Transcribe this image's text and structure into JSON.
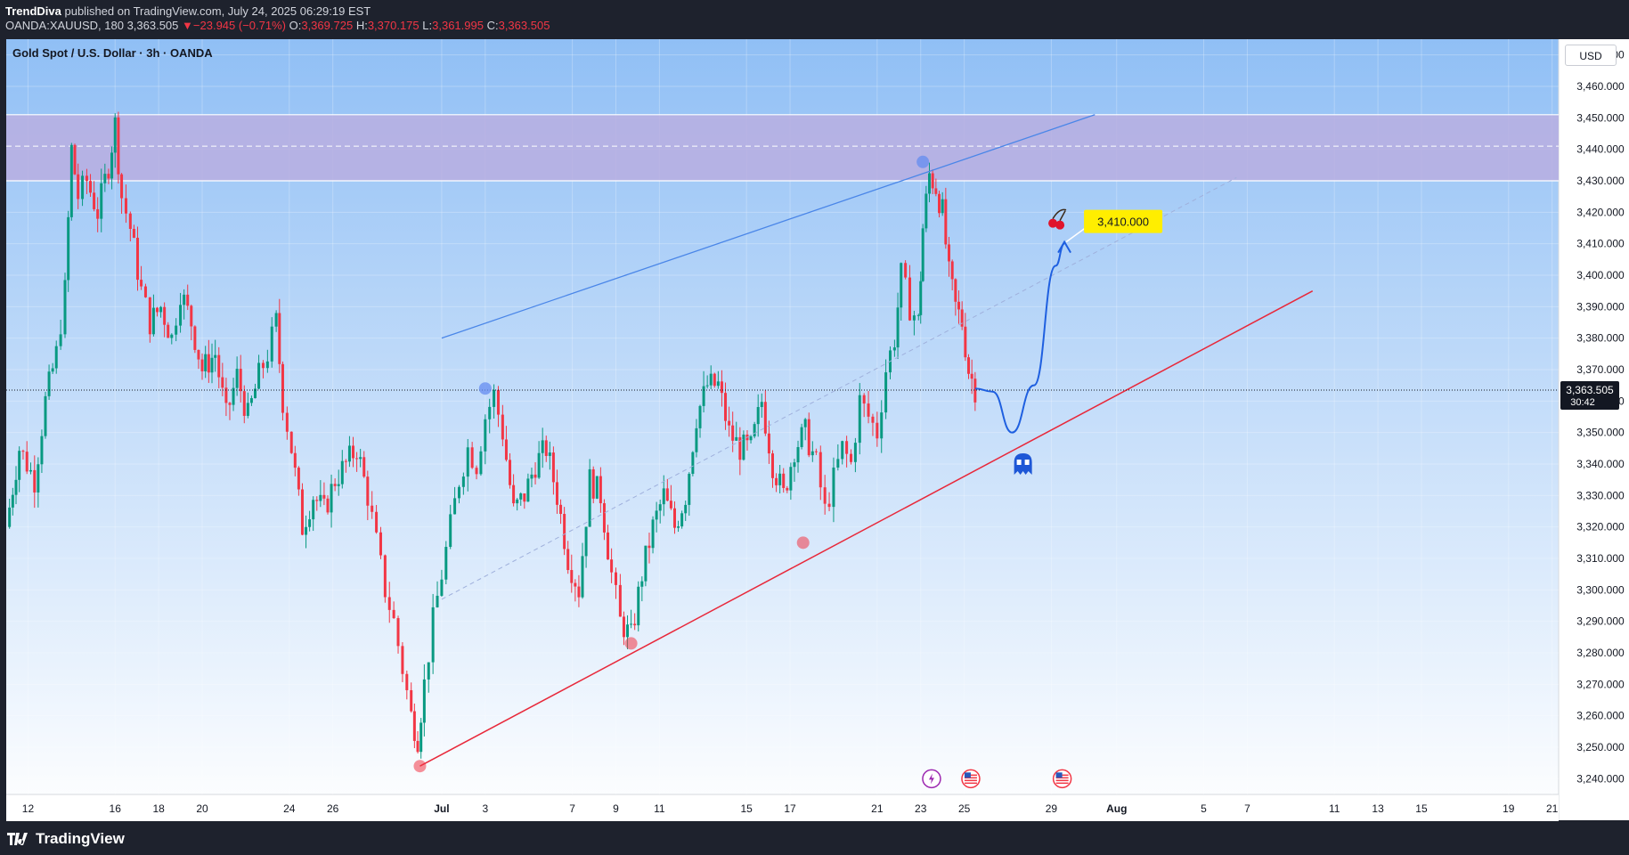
{
  "header": {
    "author": "TrendDiva",
    "published_text": "published on TradingView.com, July 24, 2025 06:29:19 EST",
    "symbol": "OANDA:XAUUSD, 180",
    "last": "3,363.505",
    "change_arrow": "▼",
    "change": "−23.945 (−0.71%)",
    "open_label": "O:",
    "open": "3,369.725",
    "high_label": "H:",
    "high": "3,370.175",
    "low_label": "L:",
    "low": "3,361.995",
    "close_label": "C:",
    "close": "3,363.505"
  },
  "chart_title": "Gold Spot / U.S. Dollar · 3h · OANDA",
  "currency_button": "USD",
  "footer": {
    "brand": "TradingView"
  },
  "colors": {
    "up": "#089981",
    "down": "#f23645",
    "bg_top": "#90bff5",
    "bg_bottom": "#ffffff",
    "zone": "#b9aee0",
    "upper_line": "#4a86e8",
    "lower_line": "#e8283a",
    "target": "#ffee00"
  },
  "chart_data": {
    "type": "candlestick",
    "ylim": [
      3235,
      3475
    ],
    "y_ticks": [
      "3,240.000",
      "3,250.000",
      "3,260.000",
      "3,270.000",
      "3,280.000",
      "3,290.000",
      "3,300.000",
      "3,310.000",
      "3,320.000",
      "3,330.000",
      "3,340.000",
      "3,350.000",
      "3,360.000",
      "3,370.000",
      "3,380.000",
      "3,390.000",
      "3,400.000",
      "3,410.000",
      "3,420.000",
      "3,430.000",
      "3,440.000",
      "3,450.000",
      "3,460.000",
      "3,470.000"
    ],
    "y_tick_values": [
      3240,
      3250,
      3260,
      3270,
      3280,
      3290,
      3300,
      3310,
      3320,
      3330,
      3340,
      3350,
      3360,
      3370,
      3380,
      3390,
      3400,
      3410,
      3420,
      3430,
      3440,
      3450,
      3460,
      3470
    ],
    "x_ticks": [
      "12",
      "16",
      "18",
      "20",
      "24",
      "26",
      "Jul",
      "3",
      "7",
      "9",
      "11",
      "15",
      "17",
      "21",
      "23",
      "25",
      "29",
      "Aug",
      "5",
      "7",
      "11",
      "13",
      "15",
      "19",
      "21"
    ],
    "x_tick_days": [
      12,
      16,
      18,
      20,
      24,
      26,
      31,
      33,
      37,
      39,
      41,
      45,
      47,
      51,
      53,
      55,
      59,
      62,
      66,
      68,
      72,
      74,
      76,
      80,
      82
    ],
    "x_domain_days": [
      11,
      82.3
    ],
    "current_price": "3,363.505",
    "current_price_value": 3363.5,
    "countdown": "30:42",
    "resistance_zone": [
      3430,
      3451
    ],
    "resistance_mid": 3441,
    "candles_close_anchors": [
      [
        11.0,
        3320
      ],
      [
        11.6,
        3345
      ],
      [
        12.3,
        3335
      ],
      [
        12.8,
        3360
      ],
      [
        13.3,
        3375
      ],
      [
        13.7,
        3395
      ],
      [
        14.0,
        3440
      ],
      [
        14.3,
        3425
      ],
      [
        14.7,
        3430
      ],
      [
        15.2,
        3420
      ],
      [
        15.7,
        3435
      ],
      [
        16.0,
        3448
      ],
      [
        16.3,
        3425
      ],
      [
        16.7,
        3415
      ],
      [
        17.2,
        3395
      ],
      [
        17.6,
        3385
      ],
      [
        18.1,
        3390
      ],
      [
        18.6,
        3380
      ],
      [
        19.0,
        3395
      ],
      [
        19.5,
        3385
      ],
      [
        20.0,
        3370
      ],
      [
        20.6,
        3375
      ],
      [
        21.1,
        3355
      ],
      [
        21.6,
        3368
      ],
      [
        22.1,
        3355
      ],
      [
        22.6,
        3368
      ],
      [
        23.0,
        3375
      ],
      [
        23.4,
        3385
      ],
      [
        23.7,
        3360
      ],
      [
        24.1,
        3345
      ],
      [
        24.6,
        3320
      ],
      [
        25.1,
        3330
      ],
      [
        25.6,
        3325
      ],
      [
        26.1,
        3335
      ],
      [
        26.6,
        3340
      ],
      [
        27.1,
        3345
      ],
      [
        27.6,
        3330
      ],
      [
        28.0,
        3315
      ],
      [
        28.4,
        3300
      ],
      [
        28.8,
        3290
      ],
      [
        29.2,
        3275
      ],
      [
        29.6,
        3260
      ],
      [
        29.9,
        3253
      ],
      [
        30.2,
        3270
      ],
      [
        30.6,
        3290
      ],
      [
        31.0,
        3305
      ],
      [
        31.4,
        3320
      ],
      [
        31.8,
        3335
      ],
      [
        32.2,
        3345
      ],
      [
        32.6,
        3340
      ],
      [
        33.0,
        3355
      ],
      [
        33.4,
        3362
      ],
      [
        33.8,
        3350
      ],
      [
        34.3,
        3325
      ],
      [
        34.8,
        3330
      ],
      [
        35.3,
        3340
      ],
      [
        35.8,
        3345
      ],
      [
        36.3,
        3330
      ],
      [
        36.8,
        3310
      ],
      [
        37.3,
        3300
      ],
      [
        37.8,
        3335
      ],
      [
        38.3,
        3330
      ],
      [
        38.8,
        3305
      ],
      [
        39.2,
        3290
      ],
      [
        39.7,
        3285
      ],
      [
        40.2,
        3305
      ],
      [
        40.7,
        3320
      ],
      [
        41.2,
        3330
      ],
      [
        41.7,
        3320
      ],
      [
        42.2,
        3330
      ],
      [
        42.7,
        3355
      ],
      [
        43.2,
        3365
      ],
      [
        43.7,
        3365
      ],
      [
        44.2,
        3350
      ],
      [
        44.7,
        3345
      ],
      [
        45.2,
        3345
      ],
      [
        45.7,
        3360
      ],
      [
        46.2,
        3340
      ],
      [
        46.7,
        3330
      ],
      [
        47.2,
        3345
      ],
      [
        47.7,
        3350
      ],
      [
        48.2,
        3340
      ],
      [
        48.6,
        3325
      ],
      [
        49.0,
        3335
      ],
      [
        49.4,
        3345
      ],
      [
        49.8,
        3340
      ],
      [
        50.2,
        3360
      ],
      [
        50.6,
        3355
      ],
      [
        51.0,
        3350
      ],
      [
        51.4,
        3370
      ],
      [
        51.8,
        3380
      ],
      [
        52.1,
        3400
      ],
      [
        52.5,
        3390
      ],
      [
        52.9,
        3385
      ],
      [
        53.1,
        3415
      ],
      [
        53.4,
        3432
      ],
      [
        53.7,
        3428
      ],
      [
        54.0,
        3420
      ],
      [
        54.3,
        3400
      ],
      [
        54.6,
        3390
      ],
      [
        54.9,
        3385
      ],
      [
        55.2,
        3370
      ],
      [
        55.5,
        3364
      ]
    ],
    "upper_channel": {
      "from": [
        31.0,
        3380
      ],
      "to": [
        61.0,
        3451
      ]
    },
    "lower_channel": {
      "from": [
        30.0,
        3244
      ],
      "to": [
        71.0,
        3395
      ]
    },
    "mid_channel": {
      "from": [
        31.0,
        3297
      ],
      "to": [
        67.5,
        3431
      ]
    },
    "touch_points": [
      {
        "day": 33.0,
        "price": 3364,
        "color": "blue"
      },
      {
        "day": 53.1,
        "price": 3436,
        "color": "blue"
      },
      {
        "day": 30.0,
        "price": 3244,
        "color": "red"
      },
      {
        "day": 39.7,
        "price": 3283,
        "color": "red"
      },
      {
        "day": 47.6,
        "price": 3315,
        "color": "red"
      }
    ],
    "projection": [
      [
        55.5,
        3364
      ],
      [
        56.3,
        3363
      ],
      [
        57.2,
        3350
      ],
      [
        58.2,
        3365
      ],
      [
        59.2,
        3403
      ],
      [
        59.6,
        3410
      ]
    ],
    "target": {
      "label": "3,410.000",
      "price": 3410,
      "day": 59.6
    },
    "event_icons_days": [
      53.5,
      55.3,
      59.5
    ]
  }
}
